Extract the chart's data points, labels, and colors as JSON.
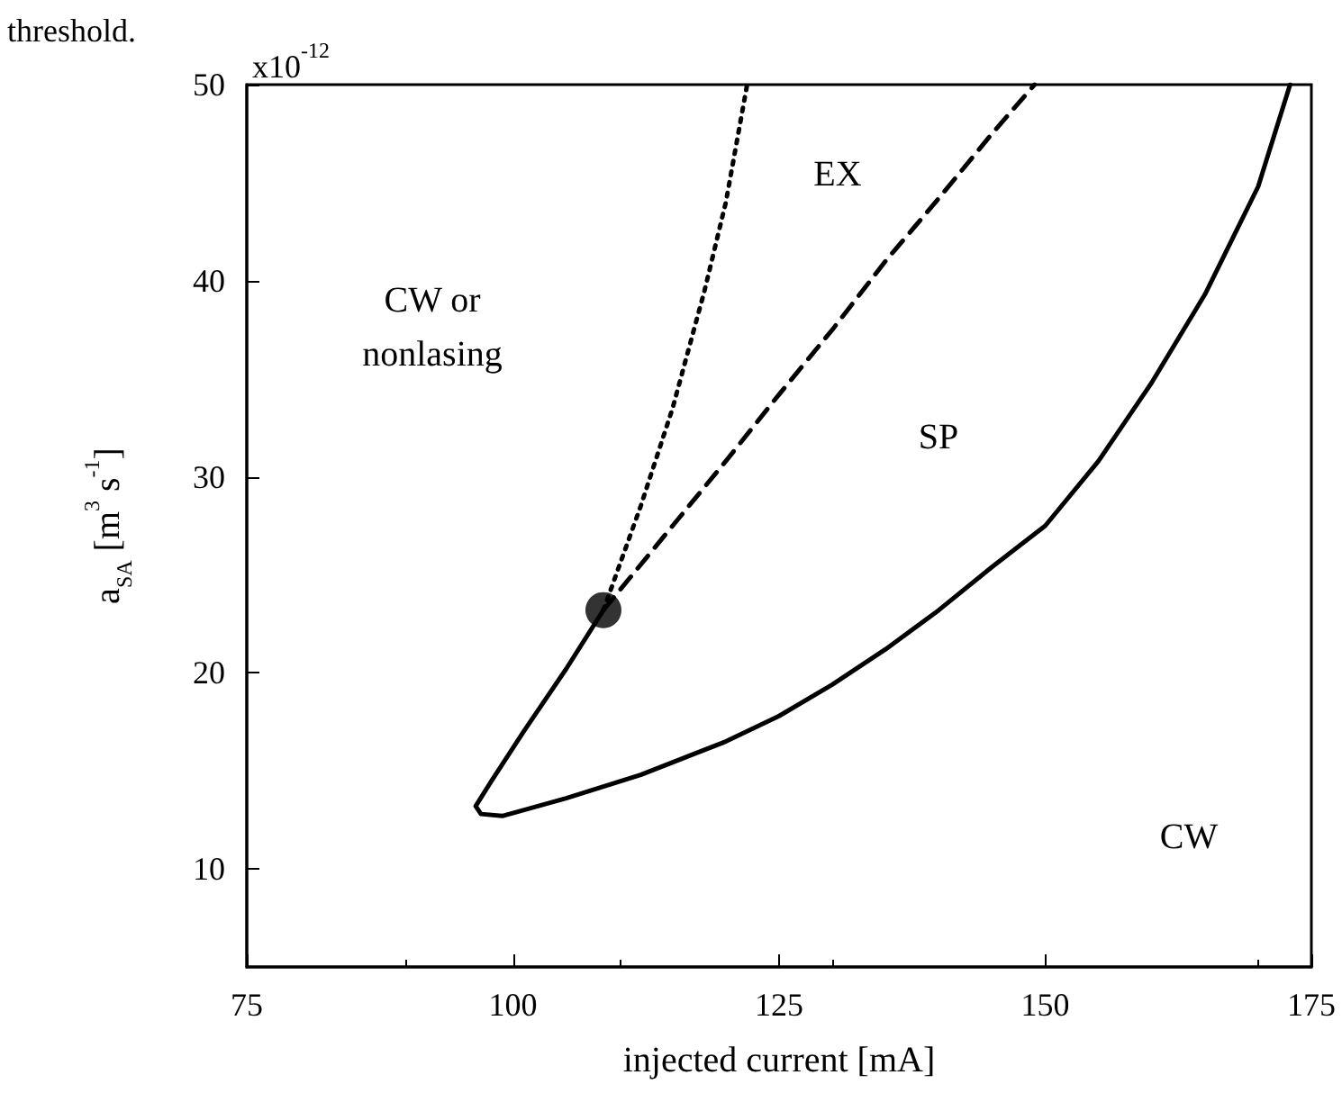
{
  "chart_data": {
    "type": "line",
    "xlabel": "injected current [mA]",
    "ylabel": "a$_{SA}$ [m$^{3}$ s$^{-1}$]",
    "xlim": [
      75,
      175
    ],
    "xticks": [
      75,
      100,
      125,
      150,
      175
    ],
    "ylim": [
      5,
      50
    ],
    "yticks": [
      10,
      20,
      30,
      40,
      50
    ],
    "grid": false,
    "series": [
      {
        "color": "#000000",
        "line_style": "solid",
        "x": [
          108.5,
          105,
          101,
          98,
          96.5,
          97,
          99,
          105,
          112,
          120,
          125,
          130,
          135,
          140,
          145,
          150,
          155,
          160,
          165,
          170,
          173
        ],
        "values": [
          23.2,
          20.2,
          17,
          14.5,
          13.2,
          12.8,
          12.7,
          13.6,
          14.8,
          16.5,
          17.8,
          19.4,
          21.2,
          23.2,
          25.4,
          27.5,
          30.8,
          34.8,
          39.3,
          44.8,
          50
        ]
      },
      {
        "color": "#000000",
        "line_style": "dotted",
        "x": [
          108.5,
          112,
          115,
          118,
          120,
          122
        ],
        "values": [
          23.2,
          28.5,
          33.5,
          39.5,
          44,
          50
        ]
      },
      {
        "color": "#000000",
        "line_style": "dashed",
        "x": [
          108.5,
          115,
          120,
          125,
          130,
          135,
          140,
          145,
          149
        ],
        "values": [
          23.2,
          27.5,
          30.8,
          34.2,
          37.5,
          41,
          44.2,
          47.5,
          50
        ]
      },
      {
        "type": "scatter",
        "marker": "circle",
        "color": "#000000",
        "x": [
          108.5
        ],
        "values": [
          23.2
        ]
      }
    ],
    "annotations": [
      "x10$^{-12}$",
      "threshold.",
      "CW or\nnonlasing",
      "EX",
      "SP",
      "CW"
    ]
  }
}
